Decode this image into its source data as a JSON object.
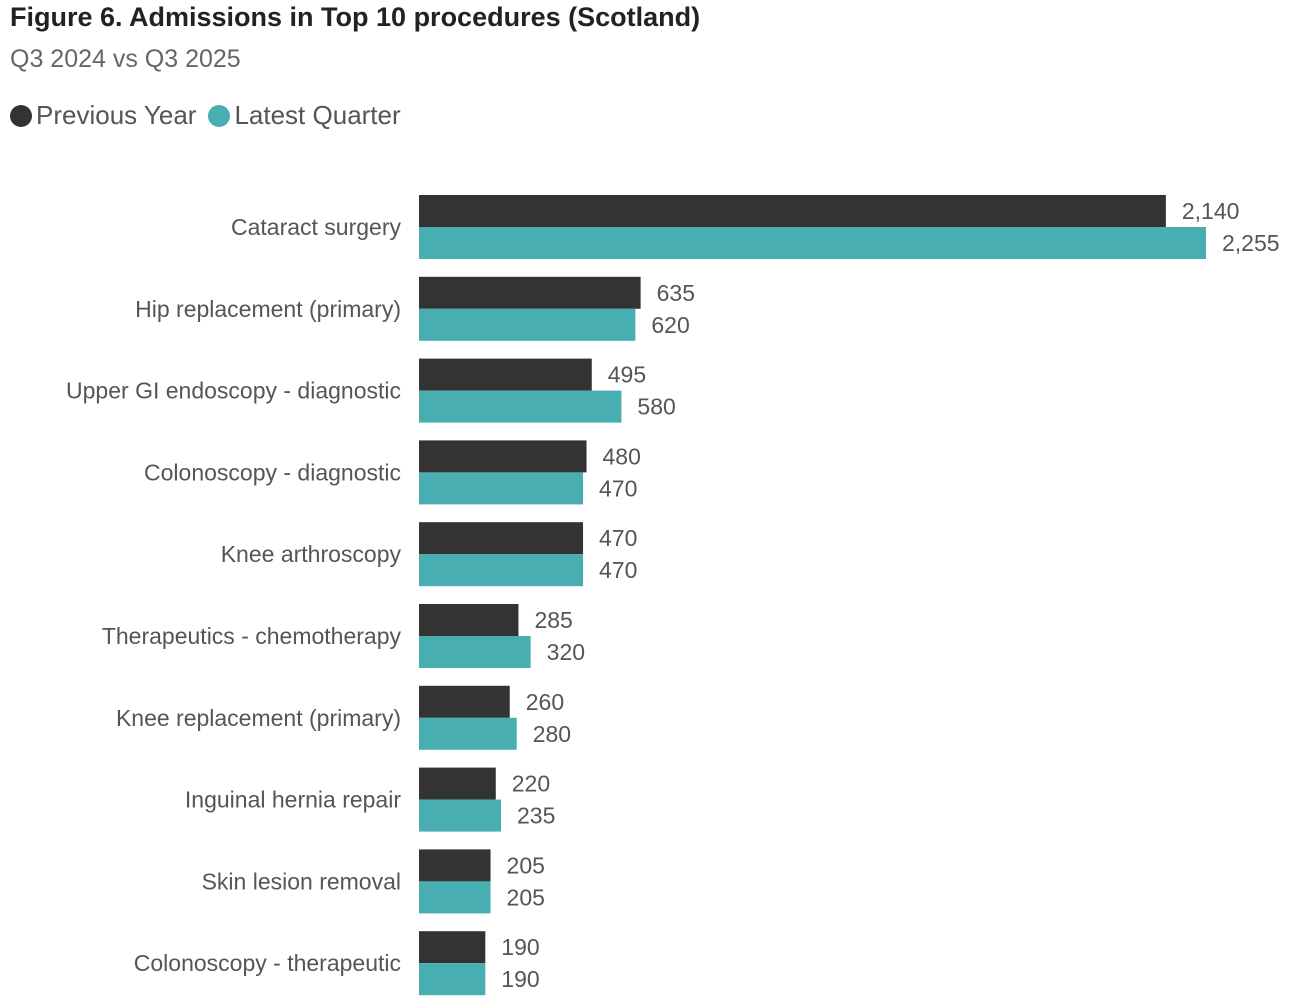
{
  "header": {
    "title": "Figure 6. Admissions in Top 10 procedures (Scotland)",
    "subtitle": "Q3 2024 vs Q3 2025"
  },
  "chart_data": {
    "type": "bar",
    "orientation": "horizontal",
    "title": "Figure 6. Admissions in Top 10 procedures (Scotland)",
    "subtitle": "Q3 2024 vs Q3 2025",
    "legend_position": "top-left",
    "grid": false,
    "xlim": [
      0,
      2255
    ],
    "categories": [
      "Cataract surgery",
      "Hip replacement (primary)",
      "Upper GI endoscopy - diagnostic",
      "Colonoscopy - diagnostic",
      "Knee arthroscopy",
      "Therapeutics - chemotherapy",
      "Knee replacement (primary)",
      "Inguinal hernia repair",
      "Skin lesion removal",
      "Colonoscopy - therapeutic"
    ],
    "series": [
      {
        "name": "Previous Year",
        "color": "#333333",
        "values": [
          2140,
          635,
          495,
          480,
          470,
          285,
          260,
          220,
          205,
          190
        ],
        "labels": [
          "2,140",
          "635",
          "495",
          "480",
          "470",
          "285",
          "260",
          "220",
          "205",
          "190"
        ]
      },
      {
        "name": "Latest Quarter",
        "color": "#48aeb2",
        "values": [
          2255,
          620,
          580,
          470,
          470,
          320,
          280,
          235,
          205,
          190
        ],
        "labels": [
          "2,255",
          "620",
          "580",
          "470",
          "470",
          "320",
          "280",
          "235",
          "205",
          "190"
        ]
      }
    ]
  }
}
